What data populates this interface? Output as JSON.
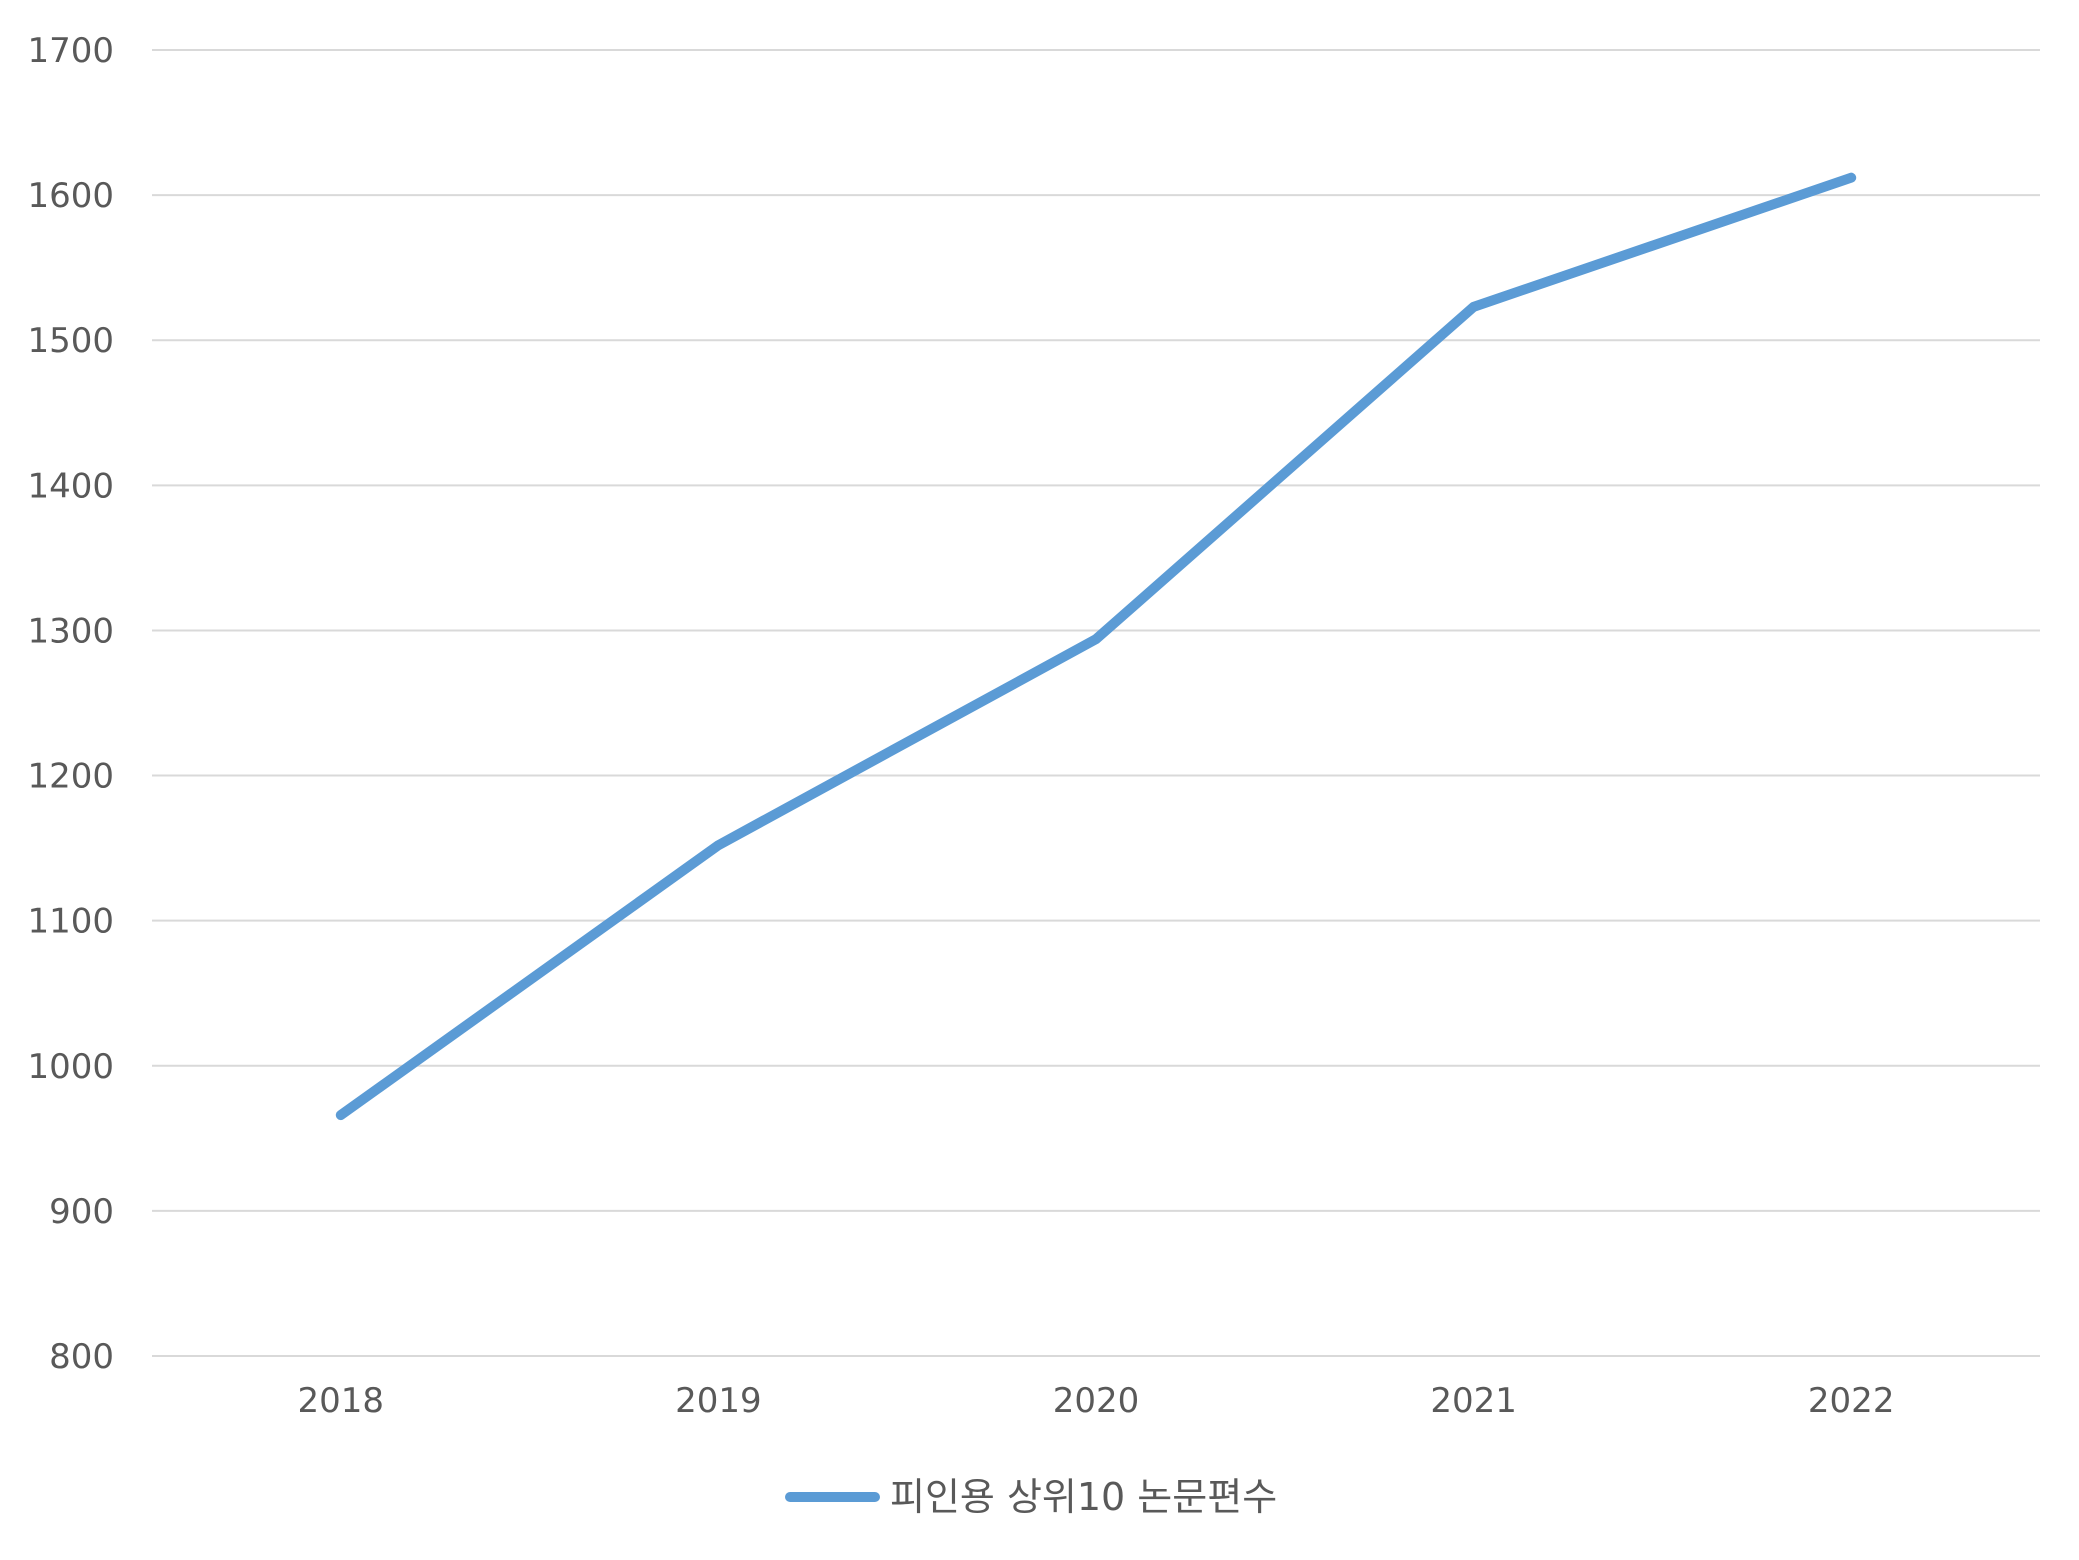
{
  "chart_data": {
    "type": "line",
    "title": "",
    "xlabel": "",
    "ylabel": "",
    "categories": [
      "2018",
      "2019",
      "2020",
      "2021",
      "2022"
    ],
    "series": [
      {
        "name": "피인용 상위10 논문편수",
        "color": "#5B9BD5",
        "values": [
          966,
          1152,
          1294,
          1523,
          1612
        ]
      }
    ],
    "ylim": [
      800,
      1700
    ],
    "yticks": [
      800,
      900,
      1000,
      1100,
      1200,
      1300,
      1400,
      1500,
      1600,
      1700
    ],
    "grid": true,
    "legend_position": "bottom"
  }
}
